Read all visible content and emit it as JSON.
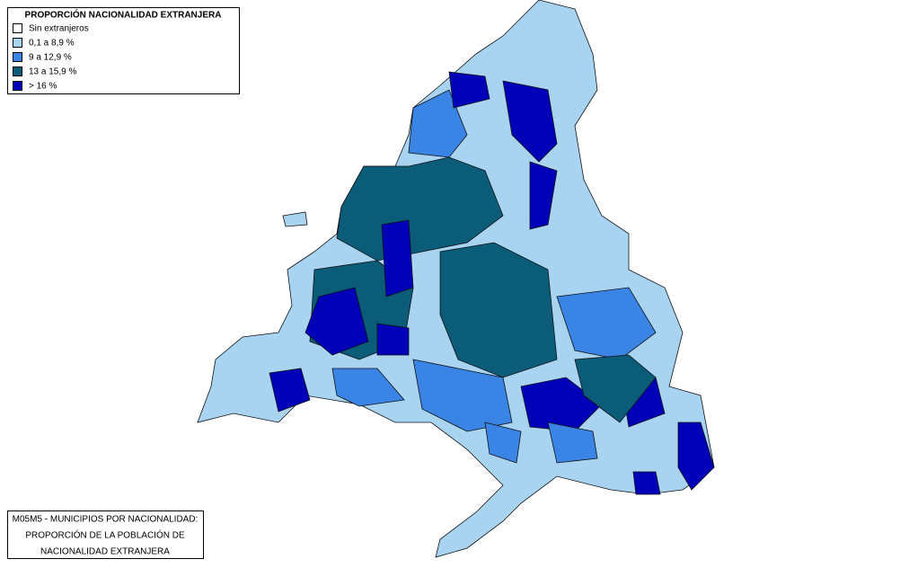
{
  "legend": {
    "title": "PROPORCIÓN NACIONALIDAD EXTRANJERA",
    "items": [
      {
        "label": "Sin extranjeros",
        "color": "#ffffff"
      },
      {
        "label": "0,1 a 8,9 %",
        "color": "#a8d4f2"
      },
      {
        "label": "9 a 12,9 %",
        "color": "#3a84e6"
      },
      {
        "label": "13 a 15,9 %",
        "color": "#0b5c78"
      },
      {
        "label": "> 16 %",
        "color": "#0000b8"
      }
    ]
  },
  "caption": {
    "lines": [
      "M05M5 - MUNICIPIOS POR NACIONALIDAD:",
      "PROPORCIÓN DE LA POBLACIÓN DE",
      "NACIONALIDAD EXTRANJERA"
    ]
  }
}
